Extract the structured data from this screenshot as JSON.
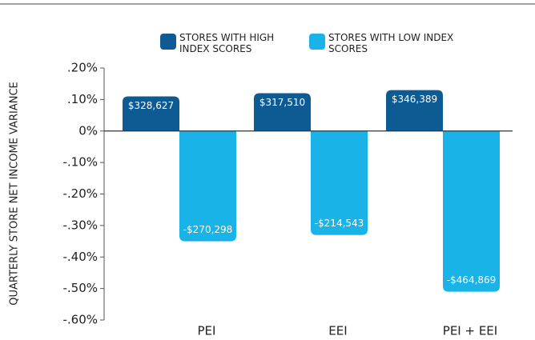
{
  "chart_data": {
    "type": "bar",
    "y_label": "QUARTERLY STORE NET INCOME VARIANCE",
    "categories": [
      "PEI",
      "EEI",
      "PEI + EEI"
    ],
    "series": [
      {
        "name": "STORES WITH HIGH INDEX SCORES",
        "color": "#0e5b94",
        "values": [
          0.11,
          0.12,
          0.13
        ],
        "labels": [
          "$328,627",
          "$317,510",
          "$346,389"
        ]
      },
      {
        "name": "STORES WITH LOW INDEX SCORES",
        "color": "#1ab3e8",
        "values": [
          -0.35,
          -0.33,
          -0.51
        ],
        "labels": [
          "-$270,298",
          "-$214,543",
          "-$464,869"
        ]
      }
    ],
    "ylim": [
      -0.6,
      0.2
    ],
    "yticks": [
      {
        "value": 0.2,
        "label": ".20%"
      },
      {
        "value": 0.1,
        "label": ".10%"
      },
      {
        "value": 0,
        "label": "0%"
      },
      {
        "value": -0.1,
        "label": "-.10%"
      },
      {
        "value": -0.2,
        "label": "-.20%"
      },
      {
        "value": -0.3,
        "label": "-.30%"
      },
      {
        "value": -0.4,
        "label": "-.40%"
      },
      {
        "value": -0.5,
        "label": "-.50%"
      },
      {
        "value": -0.6,
        "label": "-.60%"
      }
    ]
  }
}
